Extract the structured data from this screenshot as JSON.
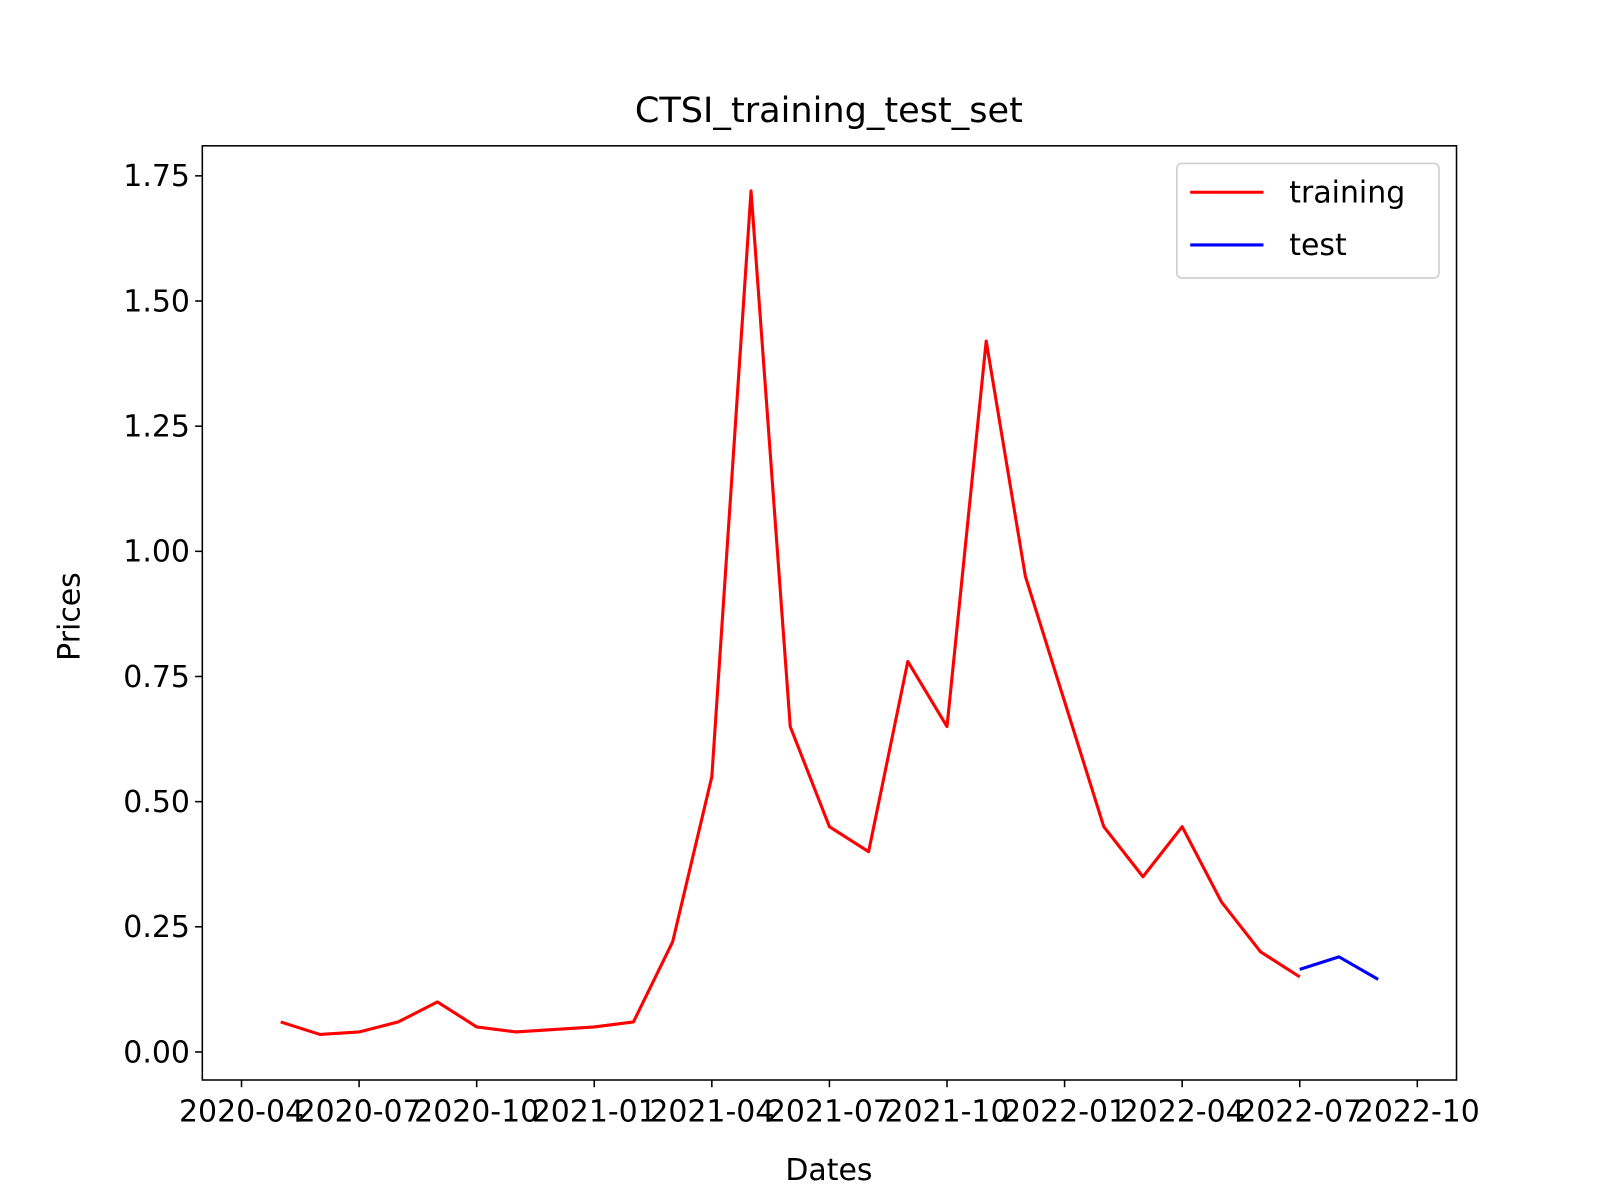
{
  "chart_data": {
    "type": "line",
    "title": "CTSI_training_test_set",
    "x_label": "Dates",
    "y_label": "Prices",
    "series": [
      {
        "name": "training",
        "color": "#ff0000",
        "x": [
          "2020-05",
          "2020-06",
          "2020-07",
          "2020-08",
          "2020-09",
          "2020-10",
          "2020-11",
          "2020-12",
          "2021-01",
          "2021-02",
          "2021-03",
          "2021-04",
          "2021-05",
          "2021-06",
          "2021-07",
          "2021-08",
          "2021-09",
          "2021-10",
          "2021-11",
          "2021-12",
          "2022-01",
          "2022-02",
          "2022-03",
          "2022-04",
          "2022-05",
          "2022-06",
          "2022-07"
        ],
        "values": [
          0.06,
          0.035,
          0.04,
          0.06,
          0.1,
          0.05,
          0.04,
          0.045,
          0.05,
          0.06,
          0.22,
          0.55,
          1.72,
          0.65,
          0.45,
          0.4,
          0.78,
          0.65,
          1.42,
          0.95,
          0.7,
          0.45,
          0.35,
          0.45,
          0.3,
          0.2,
          0.15
        ]
      },
      {
        "name": "test",
        "color": "#0000ff",
        "x": [
          "2022-07",
          "2022-08",
          "2022-09"
        ],
        "values": [
          0.165,
          0.19,
          0.145
        ]
      }
    ],
    "xlim": [
      "2020-03",
      "2022-11"
    ],
    "xticks": [
      "2020-04",
      "2020-07",
      "2020-10",
      "2021-01",
      "2021-04",
      "2021-07",
      "2021-10",
      "2022-01",
      "2022-04",
      "2022-07",
      "2022-10"
    ],
    "ylim": [
      -0.056,
      1.81
    ],
    "yticks": [
      {
        "value": 0,
        "label": "0.00"
      },
      {
        "value": 0.25,
        "label": "0.25"
      },
      {
        "value": 0.5,
        "label": "0.50"
      },
      {
        "value": 0.75,
        "label": "0.75"
      },
      {
        "value": 1,
        "label": "1.00"
      },
      {
        "value": 1.25,
        "label": "1.25"
      },
      {
        "value": 1.5,
        "label": "1.50"
      },
      {
        "value": 1.75,
        "label": "1.75"
      }
    ],
    "legend": "upper right"
  }
}
